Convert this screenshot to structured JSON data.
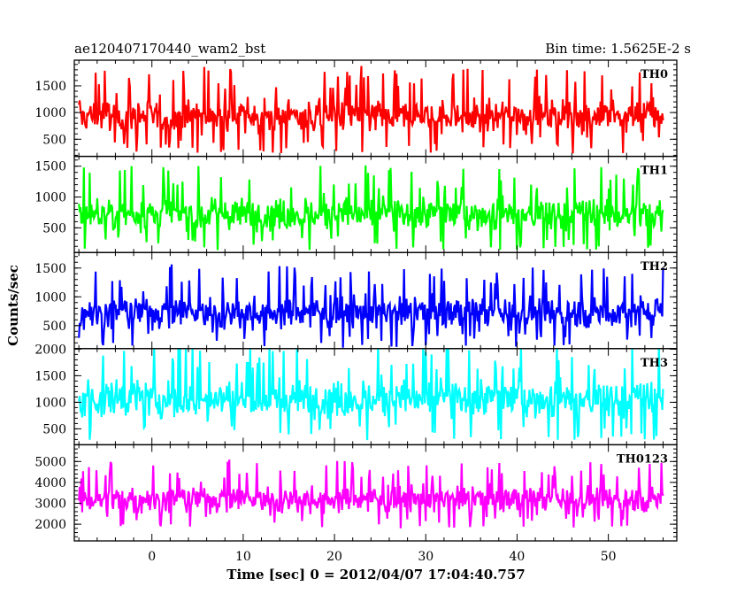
{
  "header": {
    "title": "ae120407170440_wam2_bst",
    "bin_time": "Bin time: 1.5625E-2 s"
  },
  "chart_data": {
    "type": "line",
    "title": "ae120407170440_wam2_bst",
    "subtitle": "Bin time: 1.5625E-2 s",
    "xlabel": "Time [sec] 0 = 2012/04/07 17:04:40.757",
    "ylabel": "Counts/sec",
    "xlim": [
      -8.5,
      57.5
    ],
    "xticks": [
      0,
      10,
      20,
      30,
      40,
      50
    ],
    "x_range_data": [
      -8,
      56
    ],
    "grid": false,
    "panels": [
      {
        "name": "TH0",
        "color": "#ff0000",
        "ylim": [
          180,
          1980
        ],
        "yticks": [
          500,
          1000,
          1500
        ],
        "mean": 930,
        "amp": 500
      },
      {
        "name": "TH1",
        "color": "#00ff00",
        "ylim": [
          100,
          1660
        ],
        "yticks": [
          500,
          1000,
          1500
        ],
        "mean": 720,
        "amp": 420
      },
      {
        "name": "TH2",
        "color": "#0000ff",
        "ylim": [
          100,
          1770
        ],
        "yticks": [
          500,
          1000,
          1500
        ],
        "mean": 730,
        "amp": 440
      },
      {
        "name": "TH3",
        "color": "#00ffff",
        "ylim": [
          200,
          2010
        ],
        "yticks": [
          500,
          1000,
          1500,
          2000
        ],
        "mean": 1060,
        "amp": 560
      },
      {
        "name": "TH0123",
        "color": "#ff00ff",
        "ylim": [
          1200,
          5800
        ],
        "yticks": [
          2000,
          3000,
          4000,
          5000
        ],
        "mean": 3200,
        "amp": 1000
      }
    ]
  }
}
